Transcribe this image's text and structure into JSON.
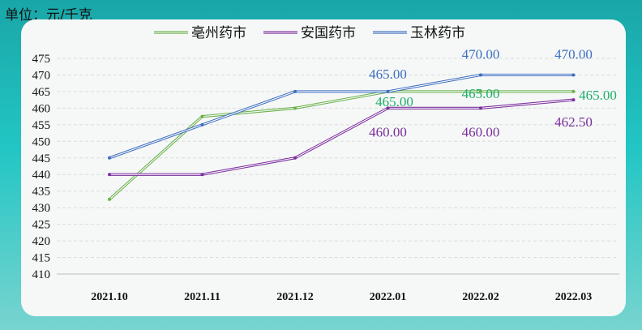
{
  "unit_label": "单位：元/千克",
  "chart_data": {
    "type": "line",
    "categories": [
      "2021.10",
      "2021.11",
      "2021.12",
      "2022.01",
      "2022.02",
      "2022.03"
    ],
    "series": [
      {
        "name": "亳州药市",
        "color": "#6ab04c",
        "values": [
          432.5,
          457.5,
          460,
          465,
          465,
          465
        ],
        "labels": [
          null,
          null,
          null,
          "465.00",
          "465.00",
          "465.00"
        ]
      },
      {
        "name": "安国药市",
        "color": "#7b2f9e",
        "values": [
          440,
          440,
          445,
          460,
          460,
          462.5
        ],
        "labels": [
          null,
          null,
          null,
          "460.00",
          "460.00",
          "462.50"
        ]
      },
      {
        "name": "玉林药市",
        "color": "#3f6fc0",
        "values": [
          445,
          455,
          465,
          465,
          470,
          470
        ],
        "labels": [
          null,
          null,
          null,
          "465.00",
          "470.00",
          "470.00"
        ]
      }
    ],
    "yticks": [
      "475",
      "470",
      "465",
      "460",
      "455",
      "450",
      "445",
      "440",
      "435",
      "430",
      "425",
      "420",
      "415",
      "410"
    ],
    "ylim": [
      410,
      475
    ],
    "grid": true,
    "legend": "top"
  }
}
